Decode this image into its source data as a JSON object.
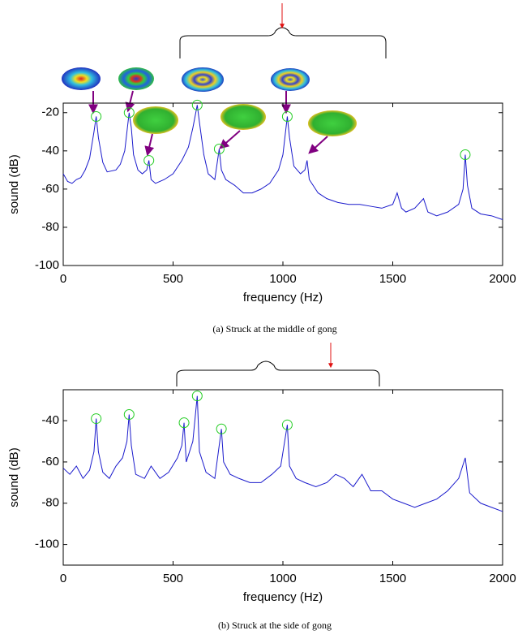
{
  "chart_data": [
    {
      "type": "line",
      "caption": "(a) Struck at the middle of gong",
      "xlabel": "frequency (Hz)",
      "ylabel": "sound (dB)",
      "color": "#1a1acc",
      "marker_color": "#22cc22",
      "x": [
        0,
        20,
        40,
        60,
        80,
        100,
        120,
        140,
        150,
        160,
        180,
        200,
        240,
        260,
        280,
        300,
        310,
        320,
        340,
        360,
        380,
        390,
        400,
        420,
        460,
        500,
        540,
        570,
        590,
        610,
        620,
        640,
        660,
        690,
        710,
        720,
        740,
        780,
        820,
        860,
        900,
        940,
        980,
        1000,
        1020,
        1030,
        1050,
        1080,
        1100,
        1110,
        1120,
        1160,
        1200,
        1250,
        1300,
        1350,
        1400,
        1450,
        1500,
        1520,
        1540,
        1560,
        1600,
        1640,
        1660,
        1700,
        1750,
        1800,
        1820,
        1830,
        1840,
        1860,
        1900,
        1950,
        2000
      ],
      "values": [
        -52,
        -56,
        -57,
        -55,
        -54,
        -50,
        -44,
        -30,
        -22,
        -33,
        -46,
        -51,
        -50,
        -47,
        -40,
        -20,
        -28,
        -42,
        -50,
        -52,
        -50,
        -45,
        -55,
        -57,
        -55,
        -52,
        -45,
        -38,
        -28,
        -16,
        -25,
        -42,
        -52,
        -55,
        -39,
        -50,
        -55,
        -58,
        -62,
        -62,
        -60,
        -57,
        -50,
        -42,
        -22,
        -33,
        -48,
        -52,
        -50,
        -45,
        -55,
        -62,
        -65,
        -67,
        -68,
        -68,
        -69,
        -70,
        -68,
        -62,
        -70,
        -72,
        -70,
        -65,
        -72,
        -74,
        -72,
        -68,
        -60,
        -42,
        -58,
        -70,
        -73,
        -74,
        -76
      ],
      "peaks": {
        "x": [
          150,
          300,
          390,
          610,
          710,
          1020,
          1830
        ],
        "values": [
          -22,
          -20,
          -45,
          -16,
          -39,
          -22,
          -42
        ]
      },
      "xlim": [
        0,
        2000
      ],
      "ylim": [
        -100,
        -15
      ],
      "xticks": [
        0,
        500,
        1000,
        1500,
        2000
      ],
      "yticks": [
        -100,
        -80,
        -60,
        -40,
        -20
      ]
    },
    {
      "type": "line",
      "caption": "(b) Struck at the side of gong",
      "xlabel": "frequency (Hz)",
      "ylabel": "sound (dB)",
      "color": "#1a1acc",
      "marker_color": "#22cc22",
      "x": [
        0,
        30,
        60,
        90,
        120,
        140,
        150,
        160,
        180,
        210,
        240,
        270,
        290,
        300,
        310,
        330,
        370,
        400,
        440,
        480,
        520,
        540,
        550,
        560,
        590,
        610,
        620,
        650,
        690,
        720,
        730,
        760,
        800,
        850,
        900,
        950,
        990,
        1020,
        1030,
        1060,
        1100,
        1150,
        1200,
        1240,
        1280,
        1320,
        1360,
        1400,
        1450,
        1500,
        1550,
        1600,
        1650,
        1700,
        1750,
        1800,
        1830,
        1850,
        1900,
        1950,
        2000
      ],
      "values": [
        -63,
        -66,
        -62,
        -68,
        -64,
        -55,
        -39,
        -55,
        -65,
        -68,
        -62,
        -58,
        -50,
        -37,
        -52,
        -66,
        -68,
        -62,
        -68,
        -65,
        -58,
        -52,
        -41,
        -60,
        -50,
        -28,
        -55,
        -65,
        -68,
        -44,
        -60,
        -66,
        -68,
        -70,
        -70,
        -66,
        -62,
        -42,
        -62,
        -68,
        -70,
        -72,
        -70,
        -66,
        -68,
        -72,
        -66,
        -74,
        -74,
        -78,
        -80,
        -82,
        -80,
        -78,
        -74,
        -68,
        -58,
        -75,
        -80,
        -82,
        -84
      ],
      "peaks": {
        "x": [
          150,
          300,
          550,
          610,
          720,
          1020
        ],
        "values": [
          -39,
          -37,
          -41,
          -28,
          -44,
          -42
        ]
      },
      "xlim": [
        0,
        2000
      ],
      "ylim": [
        -110,
        -25
      ],
      "xticks": [
        0,
        500,
        1000,
        1500,
        2000
      ],
      "yticks": [
        -100,
        -80,
        -60,
        -40
      ]
    }
  ]
}
